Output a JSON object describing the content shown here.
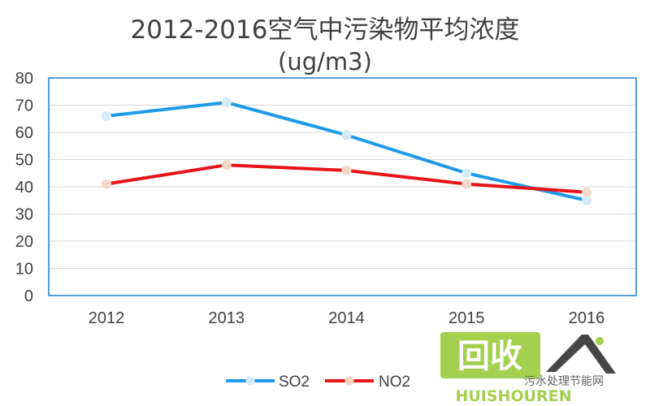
{
  "chart_data": {
    "type": "line",
    "title": "2012-2016空气中污染物平均浓度",
    "subtitle": "(ug/m3)",
    "xlabel": "",
    "ylabel": "",
    "categories": [
      "2012",
      "2013",
      "2014",
      "2015",
      "2016"
    ],
    "ylim": [
      0,
      80
    ],
    "yticks": [
      0,
      10,
      20,
      30,
      40,
      50,
      60,
      70,
      80
    ],
    "grid": true,
    "legend_position": "bottom",
    "series": [
      {
        "name": "SO2",
        "color": "#1e9be8",
        "values": [
          66,
          71,
          59,
          45,
          35
        ]
      },
      {
        "name": "NO2",
        "color": "#e8141a",
        "values": [
          41,
          48,
          46,
          41,
          38
        ]
      }
    ]
  },
  "watermark": {
    "logo_text": "回收",
    "brand": "HUISHOUREN",
    "site": "污水处理节能网",
    "colors": {
      "green": "#9acb3c",
      "dark": "#333333"
    }
  }
}
